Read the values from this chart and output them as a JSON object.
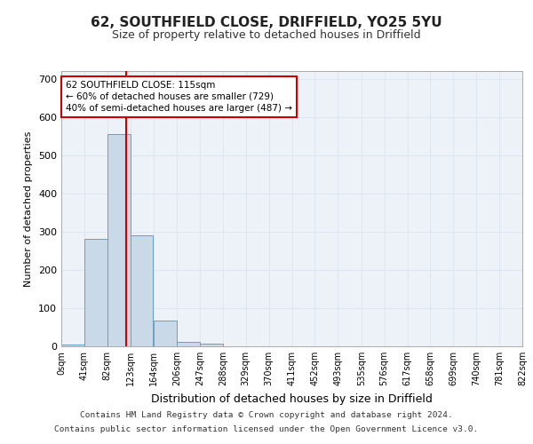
{
  "title": "62, SOUTHFIELD CLOSE, DRIFFIELD, YO25 5YU",
  "subtitle": "Size of property relative to detached houses in Driffield",
  "xlabel": "Distribution of detached houses by size in Driffield",
  "ylabel": "Number of detached properties",
  "bins": [
    0,
    41,
    82,
    123,
    164,
    206,
    247,
    288,
    329,
    370,
    411,
    452,
    493,
    535,
    576,
    617,
    658,
    699,
    740,
    781,
    822
  ],
  "bar_heights": [
    5,
    280,
    555,
    290,
    68,
    12,
    7,
    0,
    0,
    0,
    0,
    0,
    0,
    0,
    0,
    0,
    0,
    0,
    0,
    0
  ],
  "bar_color": "#c9d9e8",
  "bar_edge_color": "#6a9fc0",
  "grid_color": "#dce6f0",
  "background_color": "#edf2f9",
  "property_line_x": 115,
  "property_line_color": "#cc0000",
  "annotation_text": "62 SOUTHFIELD CLOSE: 115sqm\n← 60% of detached houses are smaller (729)\n40% of semi-detached houses are larger (487) →",
  "annotation_box_color": "#ffffff",
  "annotation_box_edge_color": "#cc0000",
  "ylim": [
    0,
    720
  ],
  "yticks": [
    0,
    100,
    200,
    300,
    400,
    500,
    600,
    700
  ],
  "footer_line1": "Contains HM Land Registry data © Crown copyright and database right 2024.",
  "footer_line2": "Contains public sector information licensed under the Open Government Licence v3.0.",
  "tick_labels": [
    "0sqm",
    "41sqm",
    "82sqm",
    "123sqm",
    "164sqm",
    "206sqm",
    "247sqm",
    "288sqm",
    "329sqm",
    "370sqm",
    "411sqm",
    "452sqm",
    "493sqm",
    "535sqm",
    "576sqm",
    "617sqm",
    "658sqm",
    "699sqm",
    "740sqm",
    "781sqm",
    "822sqm"
  ],
  "title_fontsize": 11,
  "subtitle_fontsize": 9,
  "ylabel_fontsize": 8,
  "xlabel_fontsize": 9
}
